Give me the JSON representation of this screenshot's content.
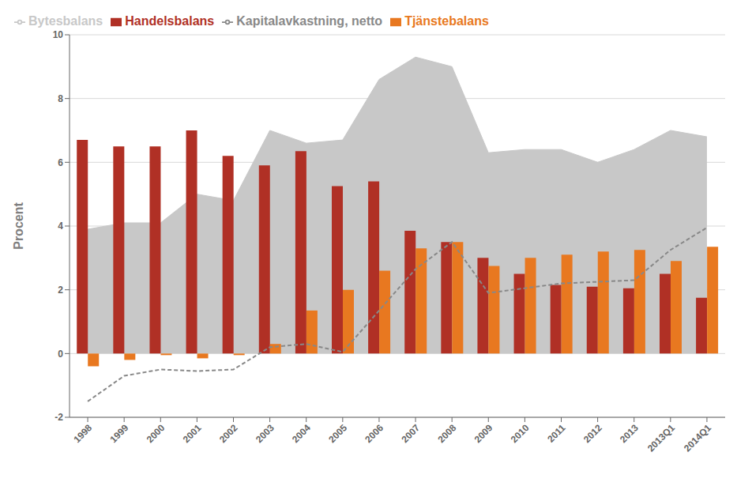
{
  "chart_data": {
    "type": "composed",
    "categories": [
      "1998",
      "1999",
      "2000",
      "2001",
      "2002",
      "2003",
      "2004",
      "2005",
      "2006",
      "2007",
      "2008",
      "2009",
      "2010",
      "2011",
      "2012",
      "2013",
      "2013Q1",
      "2014Q1"
    ],
    "series": [
      {
        "name": "Bytesbalans",
        "type": "area",
        "color": "#c8c8c8",
        "values": [
          3.9,
          4.1,
          4.1,
          5.0,
          4.8,
          7.0,
          6.6,
          6.7,
          8.6,
          9.3,
          9.0,
          6.3,
          6.4,
          6.4,
          6.0,
          6.4,
          7.0,
          6.8
        ]
      },
      {
        "name": "Handelsbalans",
        "type": "bar",
        "color": "#b03025",
        "values": [
          6.7,
          6.5,
          6.5,
          7.0,
          6.2,
          5.9,
          6.35,
          5.25,
          5.4,
          3.85,
          3.5,
          3.0,
          2.5,
          2.15,
          2.1,
          2.05,
          2.5,
          1.75
        ]
      },
      {
        "name": "Tjänstebalans",
        "type": "bar",
        "color": "#e87820",
        "values": [
          -0.4,
          -0.2,
          -0.05,
          -0.15,
          -0.05,
          0.3,
          1.35,
          2.0,
          2.6,
          3.3,
          3.5,
          2.75,
          3.0,
          3.1,
          3.2,
          3.25,
          2.9,
          3.35
        ]
      },
      {
        "name": "Kapitalavkastning, netto",
        "type": "line",
        "color": "#888888",
        "line_style": "dashed",
        "values": [
          -1.5,
          -0.7,
          -0.5,
          -0.55,
          -0.5,
          0.2,
          0.3,
          0.05,
          1.35,
          2.65,
          3.5,
          1.9,
          2.05,
          2.2,
          2.25,
          2.3,
          3.25,
          3.95
        ]
      }
    ],
    "ylabel": "Procent",
    "ylim": [
      -2,
      10
    ],
    "yticks": [
      -2,
      0,
      2,
      4,
      6,
      8,
      10
    ],
    "grid": true,
    "legend": "upper left"
  }
}
